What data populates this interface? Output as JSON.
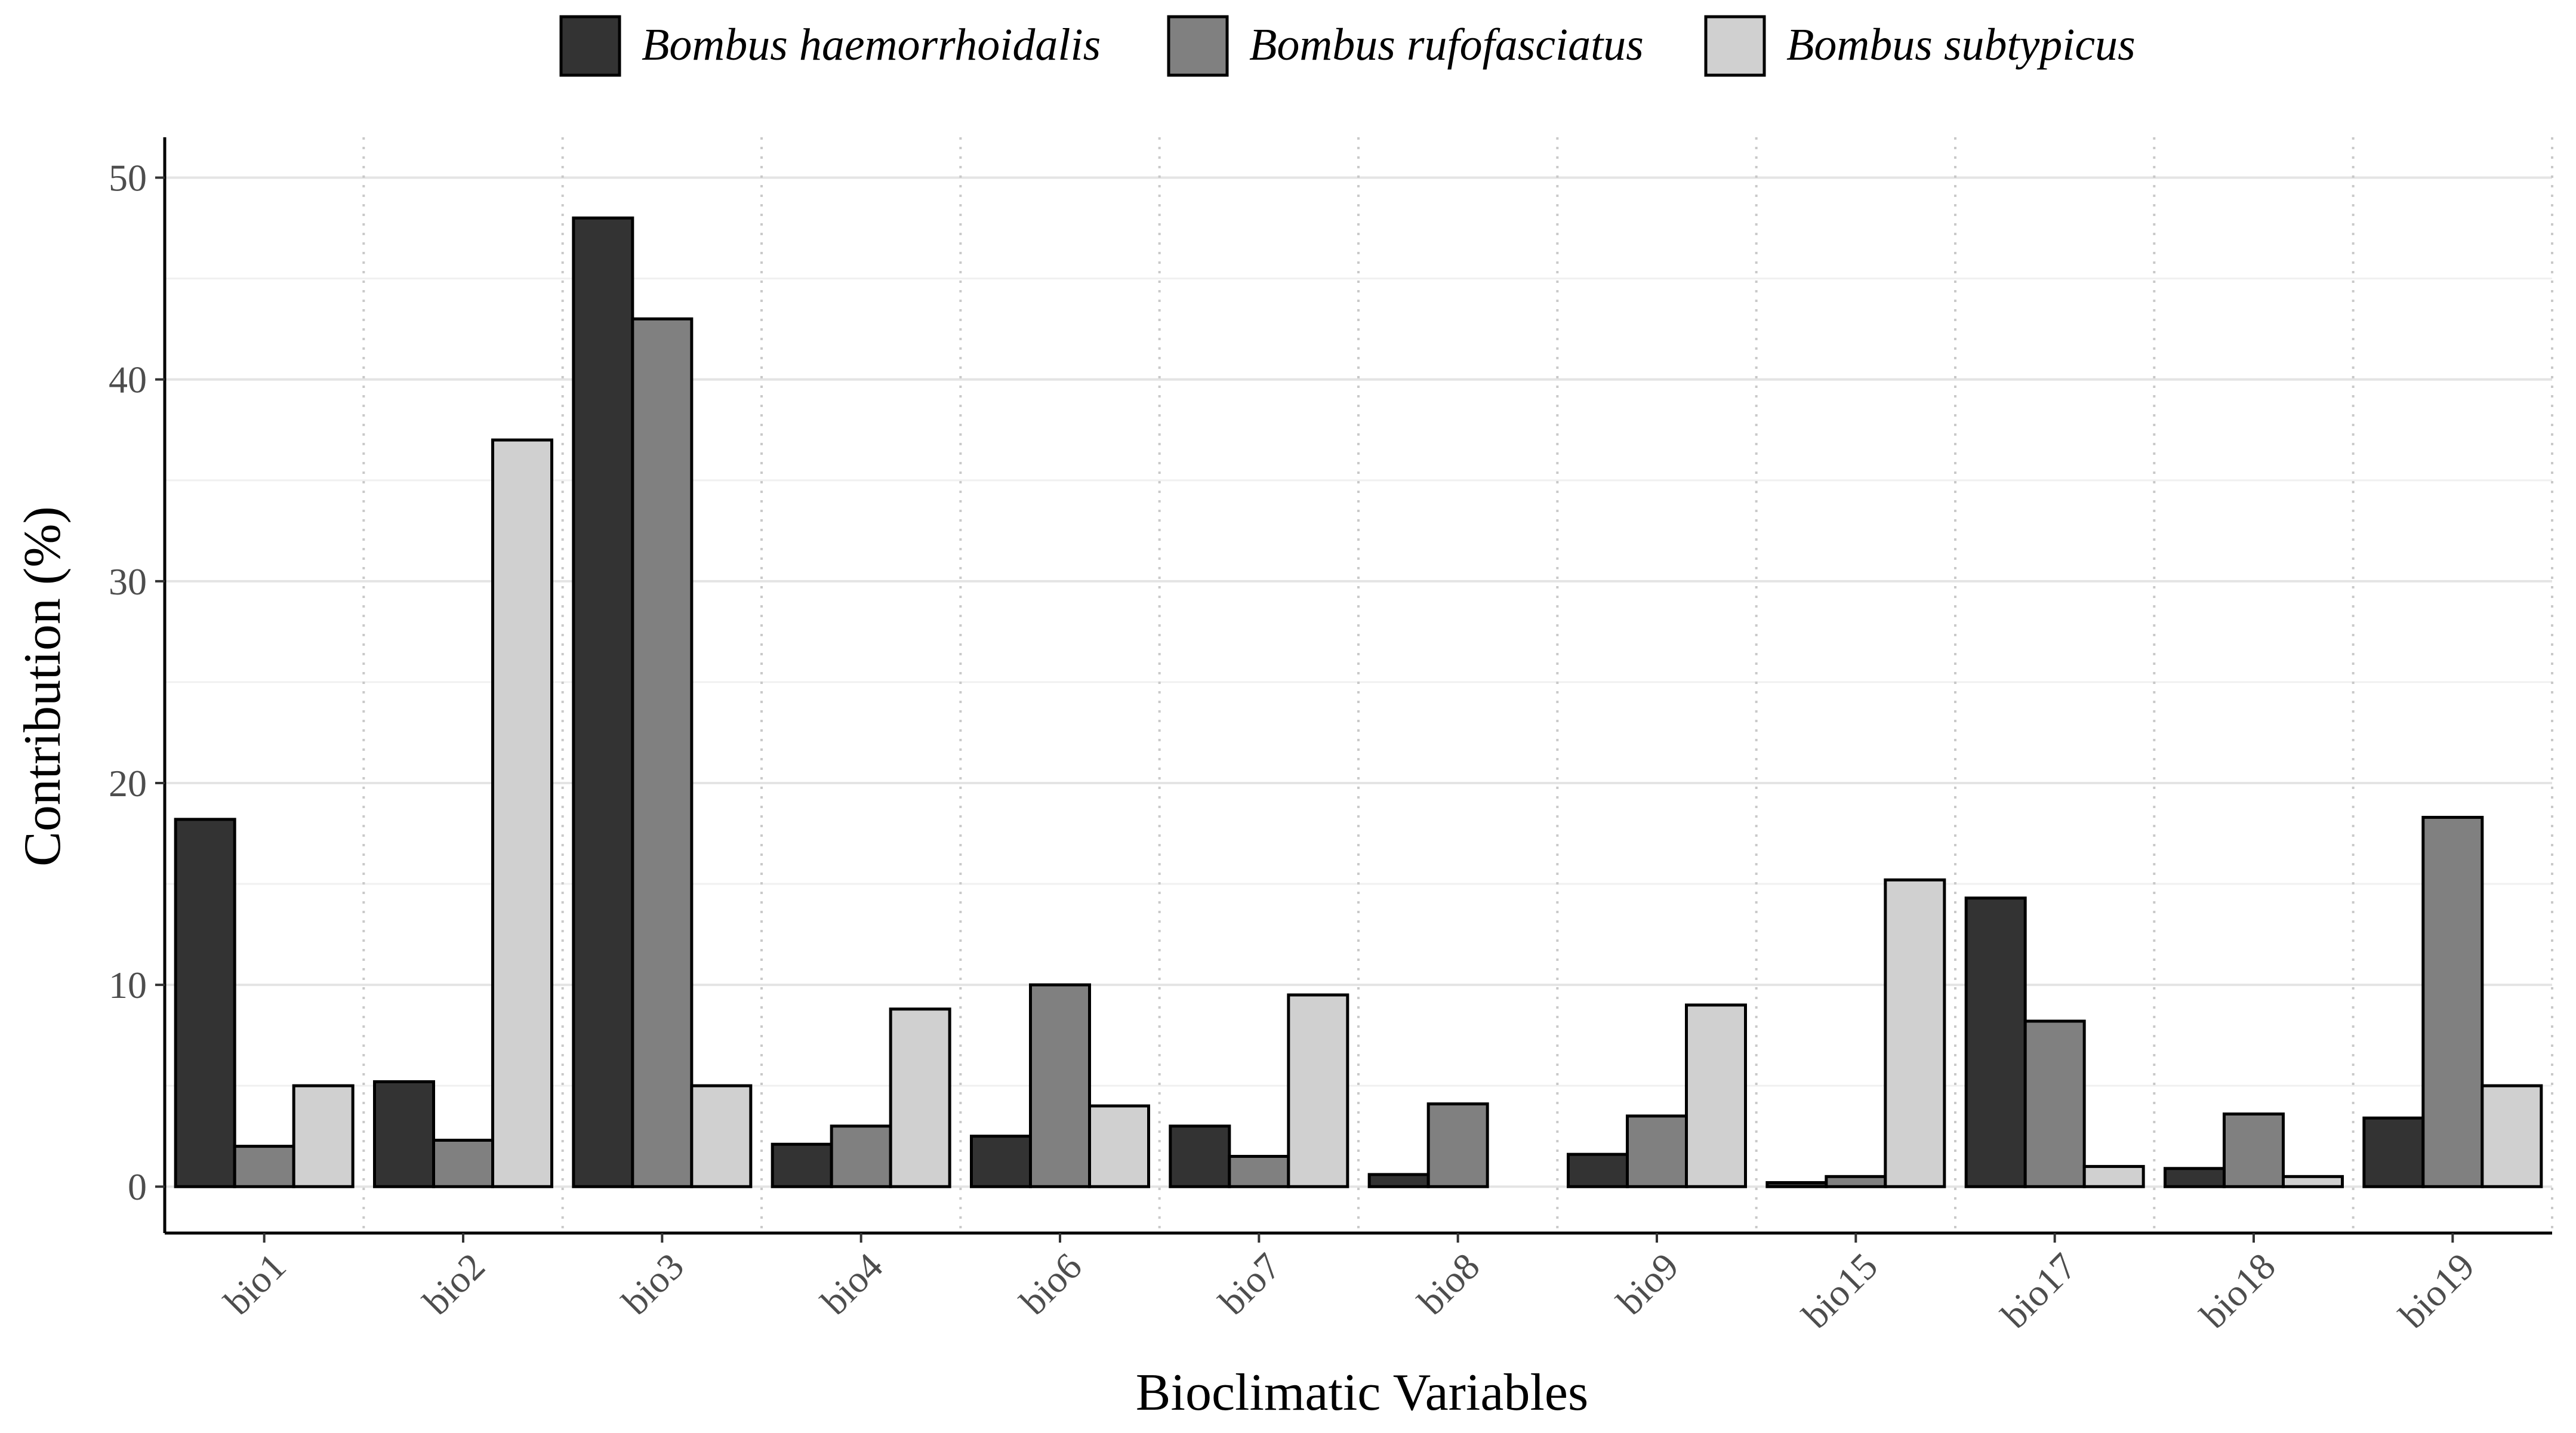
{
  "chart_data": {
    "type": "bar",
    "title": "",
    "xlabel": "Bioclimatic Variables",
    "ylabel": "Contribution (%)",
    "ylim": [
      -2.3,
      52
    ],
    "yticks": [
      0,
      10,
      20,
      30,
      40,
      50
    ],
    "ytick_labels": [
      "0",
      "10",
      "20",
      "30",
      "40",
      "50"
    ],
    "legend_position": "top",
    "categories": [
      "bio1",
      "bio2",
      "bio3",
      "bio4",
      "bio6",
      "bio7",
      "bio8",
      "bio9",
      "bio15",
      "bio17",
      "bio18",
      "bio19"
    ],
    "series": [
      {
        "name": "Bombus haemorrhoidalis",
        "color": "#333333",
        "values": [
          18.2,
          5.2,
          48.0,
          2.1,
          2.5,
          3.0,
          0.6,
          1.6,
          0.2,
          14.3,
          0.9,
          3.4
        ]
      },
      {
        "name": "Bombus rufofasciatus",
        "color": "#808080",
        "values": [
          2.0,
          2.3,
          43.0,
          3.0,
          10.0,
          1.5,
          4.1,
          3.5,
          0.5,
          8.2,
          3.6,
          18.3
        ]
      },
      {
        "name": "Bombus subtypicus",
        "color": "#d0d0d0",
        "values": [
          5.0,
          37.0,
          5.0,
          8.8,
          4.0,
          9.5,
          0.0,
          9.0,
          15.2,
          1.0,
          0.5,
          5.0
        ]
      }
    ],
    "grid": true
  }
}
